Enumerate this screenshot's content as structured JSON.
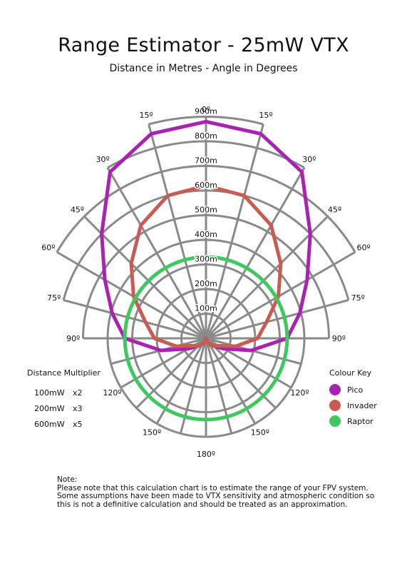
{
  "page": {
    "title": "Range Estimator - 25mW VTX",
    "subtitle": "Distance in Metres - Angle in Degrees"
  },
  "chart_data": {
    "type": "polar-line",
    "title": "Range Estimator - 25mW VTX",
    "subtitle": "Distance in Metres - Angle in Degrees",
    "r_unit": "m",
    "r_ticks": [
      100,
      200,
      300,
      400,
      500,
      600,
      700,
      800,
      900
    ],
    "r_tick_labels": [
      "100m",
      "200m",
      "300m",
      "400m",
      "500m",
      "600m",
      "700m",
      "800m",
      "900m"
    ],
    "r_max": 900,
    "angle_labels": [
      {
        "angle": 0,
        "label": "0º"
      },
      {
        "angle": 15,
        "label": "15º"
      },
      {
        "angle": -15,
        "label": "15º"
      },
      {
        "angle": 30,
        "label": "30º"
      },
      {
        "angle": -30,
        "label": "30º"
      },
      {
        "angle": 45,
        "label": "45º"
      },
      {
        "angle": -45,
        "label": "45º"
      },
      {
        "angle": 60,
        "label": "60º"
      },
      {
        "angle": -60,
        "label": "60º"
      },
      {
        "angle": 75,
        "label": "75º"
      },
      {
        "angle": -75,
        "label": "75º"
      },
      {
        "angle": 90,
        "label": "90º"
      },
      {
        "angle": -90,
        "label": "90º"
      },
      {
        "angle": 120,
        "label": "120º"
      },
      {
        "angle": -120,
        "label": "120º"
      },
      {
        "angle": 150,
        "label": "150º"
      },
      {
        "angle": -150,
        "label": "150º"
      },
      {
        "angle": 180,
        "label": "180º"
      }
    ],
    "grid": true,
    "legend_position": "bottom-right",
    "series": [
      {
        "name": "Pico",
        "color": "#aa22b4",
        "points": [
          {
            "angle": 0,
            "r": 880
          },
          {
            "angle": 15,
            "r": 860
          },
          {
            "angle": 30,
            "r": 780
          },
          {
            "angle": 45,
            "r": 600
          },
          {
            "angle": 60,
            "r": 475
          },
          {
            "angle": 75,
            "r": 395
          },
          {
            "angle": 90,
            "r": 330
          },
          {
            "angle": 105,
            "r": 190
          },
          {
            "angle": 120,
            "r": 85
          },
          {
            "angle": 135,
            "r": 45
          },
          {
            "angle": 150,
            "r": 25
          },
          {
            "angle": 165,
            "r": 10
          },
          {
            "angle": 180,
            "r": 0
          }
        ]
      },
      {
        "name": "Invader",
        "color": "#c85c52",
        "points": [
          {
            "angle": 0,
            "r": 620
          },
          {
            "angle": 15,
            "r": 600
          },
          {
            "angle": 30,
            "r": 530
          },
          {
            "angle": 45,
            "r": 430
          },
          {
            "angle": 60,
            "r": 340
          },
          {
            "angle": 75,
            "r": 255
          },
          {
            "angle": 90,
            "r": 210
          },
          {
            "angle": 105,
            "r": 125
          },
          {
            "angle": 120,
            "r": 60
          },
          {
            "angle": 135,
            "r": 45
          },
          {
            "angle": 150,
            "r": 25
          },
          {
            "angle": 165,
            "r": 10
          },
          {
            "angle": 180,
            "r": 0
          }
        ]
      },
      {
        "name": "Raptor",
        "color": "#3ec95e",
        "points": [
          {
            "angle": 0,
            "r": 330
          },
          {
            "angle": 90,
            "r": 330
          },
          {
            "angle": 180,
            "r": 330
          }
        ]
      }
    ]
  },
  "distance_multiplier": {
    "heading": "Distance Multiplier",
    "rows": [
      {
        "power": "100mW",
        "factor": "x2"
      },
      {
        "power": "200mW",
        "factor": "x3"
      },
      {
        "power": "600mW",
        "factor": "x5"
      }
    ]
  },
  "colour_key": {
    "heading": "Colour Key",
    "items": [
      {
        "label": "Pico",
        "color": "#aa22b4"
      },
      {
        "label": "Invader",
        "color": "#c85c52"
      },
      {
        "label": "Raptor",
        "color": "#3ec95e"
      }
    ]
  },
  "note": {
    "lines": [
      "Note:",
      "Please note that this calculation chart is to estimate the range of your FPV system.",
      "Some assumptions have been made to VTX sensitivity and atmospheric condition so",
      "this is not a definitive calculation and should be treated as an approximation."
    ]
  }
}
